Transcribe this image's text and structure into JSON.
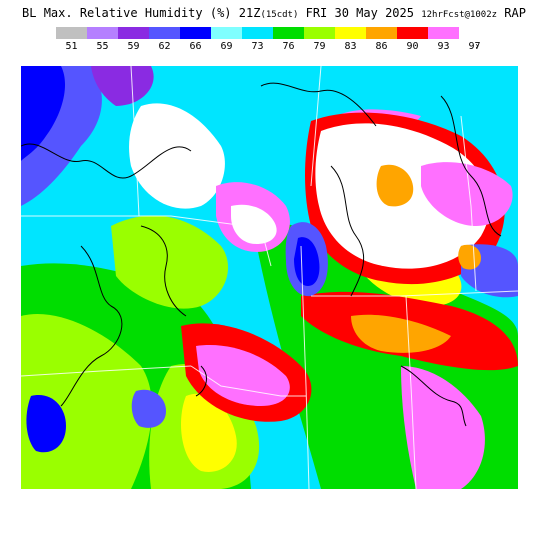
{
  "header": {
    "title_main": "BL Max. Relative Humidity (%) 21Z",
    "title_small_1": "(15cdt)",
    "title_date": " FRI 30 May 2025 ",
    "title_small_2": "12hrFcst@1002z",
    "title_model": " RAP"
  },
  "legend": {
    "items": [
      {
        "label": "51",
        "color": "#c0c0c0"
      },
      {
        "label": "55",
        "color": "#b57fff"
      },
      {
        "label": "59",
        "color": "#8a2be2"
      },
      {
        "label": "62",
        "color": "#5555ff"
      },
      {
        "label": "66",
        "color": "#0000ff"
      },
      {
        "label": "69",
        "color": "#80ffff"
      },
      {
        "label": "73",
        "color": "#00e5ff"
      },
      {
        "label": "76",
        "color": "#00dd00"
      },
      {
        "label": "79",
        "color": "#9aff00"
      },
      {
        "label": "83",
        "color": "#ffff00"
      },
      {
        "label": "86",
        "color": "#ffa500"
      },
      {
        "label": "90",
        "color": "#ff0000"
      },
      {
        "label": "93",
        "color": "#ff70ff"
      },
      {
        "label": "97",
        "color": "#ffffff"
      }
    ],
    "more_label": "›"
  }
}
